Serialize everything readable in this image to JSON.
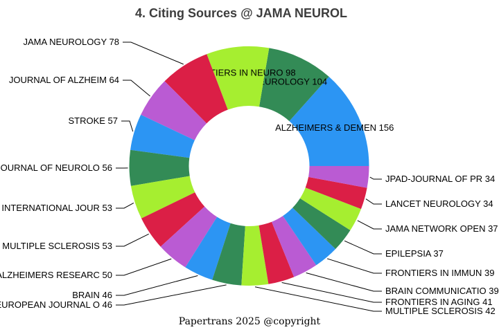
{
  "title": "4. Citing Sources @ JAMA NEUROL",
  "footer": "Papertrans 2025 @copyright",
  "colors": {
    "background": "#ffffff",
    "title_text": "#3d3d3d",
    "label_text": "#000000",
    "leader_line": "#000000"
  },
  "chart_data": {
    "type": "pie",
    "subtype": "donut",
    "title": "4. Citing Sources @ JAMA NEUROL",
    "total": 1164,
    "start_angle_deg": 0,
    "direction": "counterclockwise",
    "legend": "none",
    "palette_cycle": [
      "#2C95F3",
      "#338B56",
      "#A6EE30",
      "#DB1F46",
      "#BA5BD3"
    ],
    "slices": [
      {
        "label": "ALZHEIMERS & DEMEN",
        "value": 156,
        "color": "#2C95F3",
        "label_placement": "inside"
      },
      {
        "label": "NEUROLOGY",
        "value": 104,
        "color": "#338B56",
        "label_placement": "inside"
      },
      {
        "label": "FRONTIERS IN NEURO",
        "value": 98,
        "color": "#A6EE30",
        "label_placement": "inside"
      },
      {
        "label": "JAMA NEUROLOGY",
        "value": 78,
        "color": "#DB1F46",
        "label_placement": "outside-left"
      },
      {
        "label": "JOURNAL OF ALZHEIM",
        "value": 64,
        "color": "#BA5BD3",
        "label_placement": "outside-left"
      },
      {
        "label": "STROKE",
        "value": 57,
        "color": "#2C95F3",
        "label_placement": "outside-left"
      },
      {
        "label": "JOURNAL OF NEUROLO",
        "value": 56,
        "color": "#338B56",
        "label_placement": "outside-left"
      },
      {
        "label": "INTERNATIONAL JOUR",
        "value": 53,
        "color": "#A6EE30",
        "label_placement": "outside-left"
      },
      {
        "label": "MULTIPLE SCLEROSIS",
        "value": 53,
        "color": "#DB1F46",
        "label_placement": "outside-left"
      },
      {
        "label": "ALZHEIMERS RESEARC",
        "value": 50,
        "color": "#BA5BD3",
        "label_placement": "outside-left"
      },
      {
        "label": "BRAIN",
        "value": 46,
        "color": "#2C95F3",
        "label_placement": "outside-left"
      },
      {
        "label": "EUROPEAN JOURNAL O",
        "value": 46,
        "color": "#338B56",
        "label_placement": "outside-left"
      },
      {
        "label": "MULTIPLE SCLEROSIS",
        "value": 42,
        "color": "#A6EE30",
        "label_placement": "outside-right"
      },
      {
        "label": "FRONTIERS IN AGING",
        "value": 41,
        "color": "#DB1F46",
        "label_placement": "outside-right"
      },
      {
        "label": "BRAIN COMMUNICATIO",
        "value": 39,
        "color": "#BA5BD3",
        "label_placement": "outside-right"
      },
      {
        "label": "FRONTIERS IN IMMUN",
        "value": 39,
        "color": "#2C95F3",
        "label_placement": "outside-right"
      },
      {
        "label": "EPILEPSIA",
        "value": 37,
        "color": "#338B56",
        "label_placement": "outside-right"
      },
      {
        "label": "JAMA NETWORK OPEN",
        "value": 37,
        "color": "#A6EE30",
        "label_placement": "outside-right"
      },
      {
        "label": "LANCET NEUROLOGY",
        "value": 34,
        "color": "#DB1F46",
        "label_placement": "outside-right"
      },
      {
        "label": "JPAD-JOURNAL OF PR",
        "value": 34,
        "color": "#BA5BD3",
        "label_placement": "outside-right"
      }
    ]
  }
}
